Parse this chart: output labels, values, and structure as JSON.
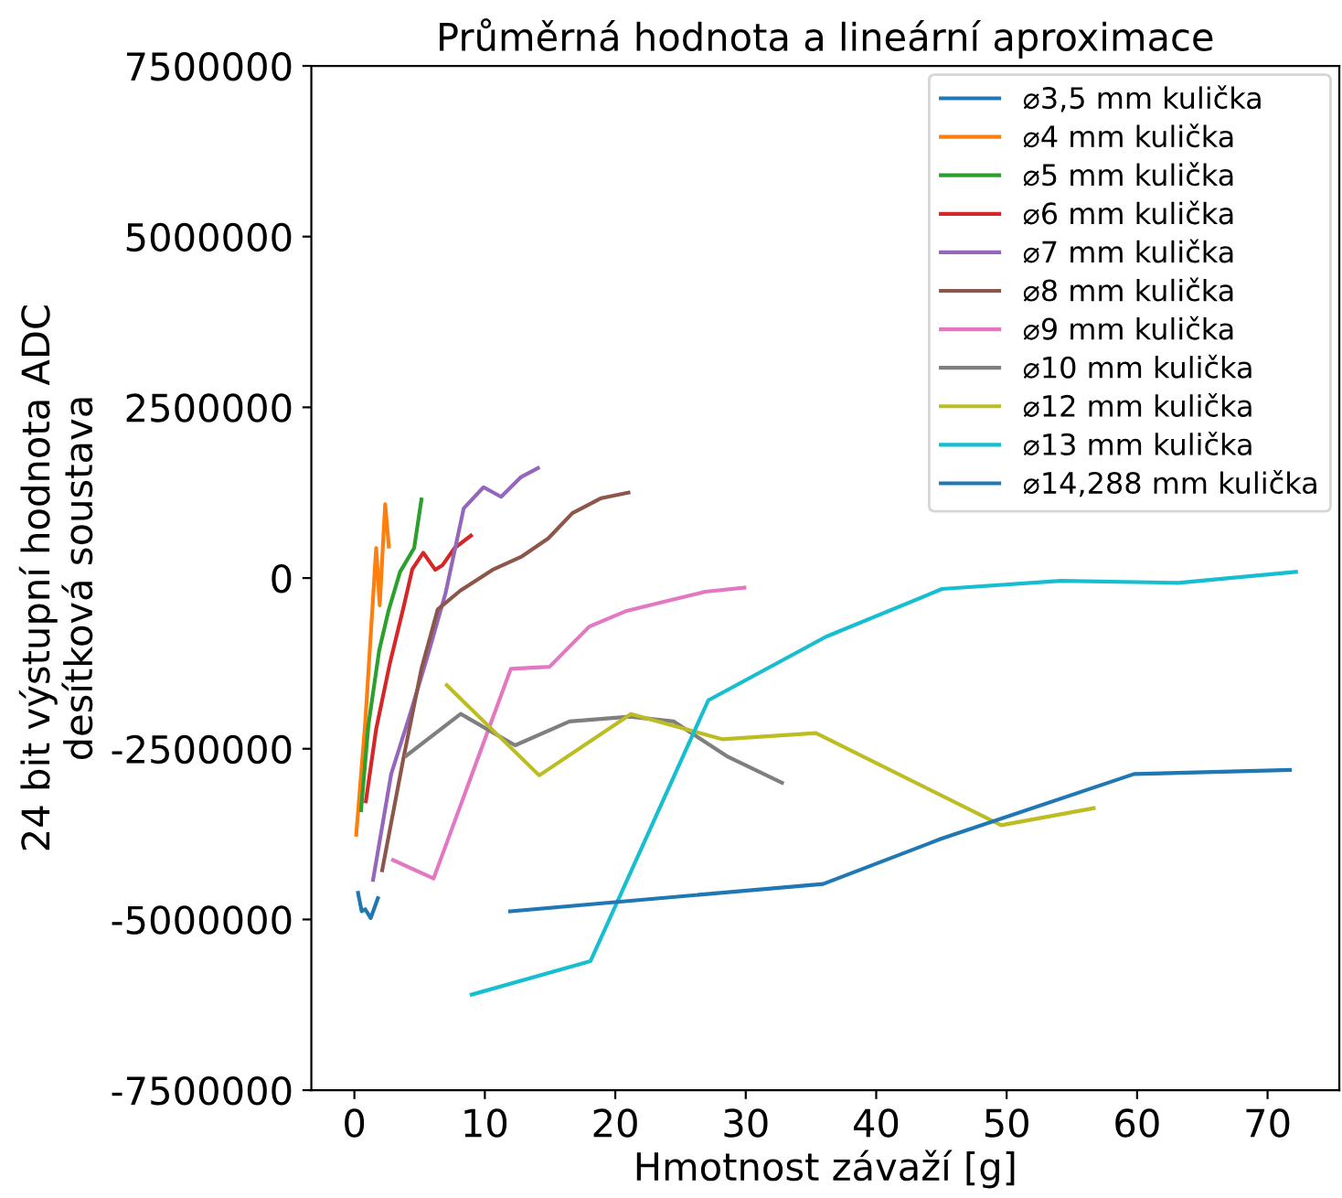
{
  "chart_data": {
    "type": "line",
    "title": "Průměrná hodnota a lineární aproximace",
    "xlabel": "Hmotnost závaží [g]",
    "ylabel": "24 bit výstupní hodnota ADC\ndesítková soustava",
    "xlim": [
      -3.3,
      75.5
    ],
    "xticks": [
      0,
      10,
      20,
      30,
      40,
      50,
      60,
      70
    ],
    "ylim": [
      -7500000,
      7500000
    ],
    "yticks": [
      -7500000,
      -5000000,
      -2500000,
      0,
      2500000,
      5000000,
      7500000
    ],
    "legend": "top right",
    "grid": false,
    "series": [
      {
        "name": "⌀3,5 mm kulička",
        "color": "#1f77b4",
        "x": [
          0.28,
          0.56,
          0.83,
          1.25,
          1.8
        ],
        "values": [
          -4610000,
          -4880000,
          -4850000,
          -4980000,
          -4690000
        ]
      },
      {
        "name": "⌀4 mm kulička",
        "color": "#ff7f0e",
        "x": [
          0.14,
          0.83,
          1.67,
          1.94,
          2.36,
          2.64
        ],
        "values": [
          -3760000,
          -2120000,
          440000,
          -400000,
          1080000,
          460000
        ]
      },
      {
        "name": "⌀5 mm kulička",
        "color": "#2ca02c",
        "x": [
          0.51,
          1.07,
          1.9,
          2.6,
          3.5,
          4.58,
          5.14
        ],
        "values": [
          -3400000,
          -2160000,
          -1060000,
          -490000,
          90000,
          440000,
          1150000
        ]
      },
      {
        "name": "⌀6 mm kulička",
        "color": "#d62728",
        "x": [
          0.88,
          1.67,
          2.73,
          3.75,
          4.44,
          5.28,
          6.2,
          6.76,
          7.68,
          8.93
        ],
        "values": [
          -3270000,
          -2210000,
          -1240000,
          -440000,
          130000,
          370000,
          120000,
          190000,
          440000,
          620000
        ]
      },
      {
        "name": "⌀7 mm kulička",
        "color": "#9467bd",
        "x": [
          1.43,
          2.82,
          4.21,
          5.6,
          6.99,
          8.38,
          9.9,
          11.25,
          12.78,
          14.07
        ],
        "values": [
          -4420000,
          -2870000,
          -2030000,
          -1150000,
          -220000,
          1020000,
          1330000,
          1190000,
          1480000,
          1610000
        ]
      },
      {
        "name": "⌀8 mm kulička",
        "color": "#8c564b",
        "x": [
          2.13,
          3.75,
          5.14,
          6.39,
          8.15,
          10.69,
          12.78,
          14.86,
          16.71,
          18.93,
          21.01
        ],
        "values": [
          -4280000,
          -2650000,
          -1330000,
          -460000,
          -180000,
          130000,
          310000,
          580000,
          950000,
          1170000,
          1250000
        ]
      },
      {
        "name": "⌀9 mm kulička",
        "color": "#e377c2",
        "x": [
          2.96,
          6.07,
          11.99,
          14.96,
          18.01,
          20.88,
          23.65,
          26.9,
          29.9
        ],
        "values": [
          -4130000,
          -4400000,
          -1330000,
          -1300000,
          -710000,
          -480000,
          -350000,
          -200000,
          -140000
        ]
      },
      {
        "name": "⌀10 mm kulička",
        "color": "#7f7f7f",
        "x": [
          3.99,
          8.15,
          12.32,
          16.49,
          21.11,
          24.49,
          28.65,
          32.78
        ],
        "values": [
          -2600000,
          -1990000,
          -2450000,
          -2100000,
          -2030000,
          -2100000,
          -2620000,
          -3000000
        ]
      },
      {
        "name": "⌀12 mm kulička",
        "color": "#bcbd22",
        "x": [
          7.08,
          14.17,
          21.2,
          28.19,
          35.38,
          49.58,
          56.67
        ],
        "values": [
          -1570000,
          -2890000,
          -1990000,
          -2360000,
          -2270000,
          -3620000,
          -3370000
        ]
      },
      {
        "name": "⌀13 mm kulička",
        "color": "#17becf",
        "x": [
          8.99,
          18.1,
          27.13,
          36.15,
          45.04,
          54.13,
          63.15,
          72.18
        ],
        "values": [
          -6100000,
          -5610000,
          -1790000,
          -860000,
          -160000,
          -40000,
          -70000,
          90000
        ]
      },
      {
        "name": "⌀14,288 mm kulička",
        "color": "#1f77b4",
        "x": [
          11.94,
          35.93,
          44.96,
          59.77,
          71.71
        ],
        "values": [
          -4880000,
          -4480000,
          -3820000,
          -2870000,
          -2810000
        ]
      }
    ]
  }
}
